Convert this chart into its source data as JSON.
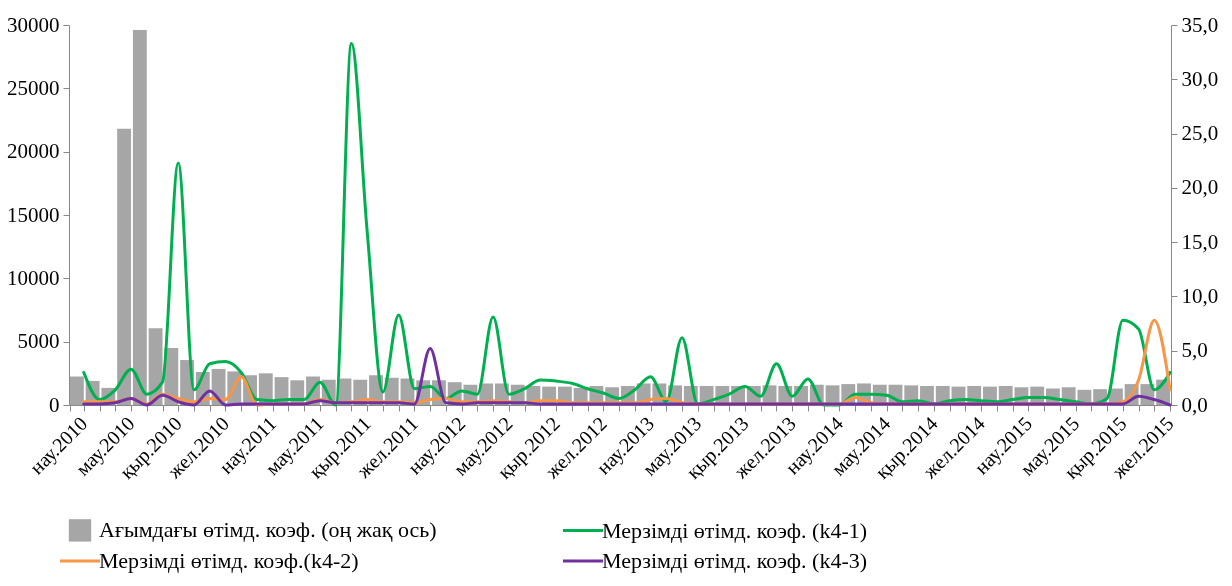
{
  "chart_data": {
    "type": "bar",
    "categories": [
      "нау.2010",
      null,
      null,
      "мау.2010",
      null,
      null,
      "қыр.2010",
      null,
      null,
      "жел.2010",
      null,
      null,
      "нау.2011",
      null,
      null,
      "мау.2011",
      null,
      null,
      "қыр.2011",
      null,
      null,
      "жел.2011",
      null,
      null,
      "нау.2012",
      null,
      null,
      "мау.2012",
      null,
      null,
      "қыр.2012",
      null,
      null,
      "жел.2012",
      null,
      null,
      "нау.2013",
      null,
      null,
      "мау.2013",
      null,
      null,
      "қыр.2013",
      null,
      null,
      "жел.2013",
      null,
      null,
      "нау.2014",
      null,
      null,
      "мау.2014",
      null,
      null,
      "қыр.2014",
      null,
      null,
      "жел.2014",
      null,
      null,
      "нау.2015",
      null,
      null,
      "мау.2015",
      null,
      null,
      "қыр.2015",
      null,
      null,
      "жел.2015"
    ],
    "series": [
      {
        "name": "Ағымдағы өтімд. коэф. (оң жақ ось)",
        "color": "#a6a6a6",
        "values": [
          2250,
          1900,
          1350,
          21800,
          29600,
          6050,
          4500,
          3550,
          2600,
          2850,
          2650,
          2350,
          2500,
          2200,
          1950,
          2250,
          2000,
          2100,
          2000,
          2350,
          2150,
          2100,
          1950,
          1950,
          1800,
          1600,
          1700,
          1700,
          1600,
          1500,
          1450,
          1450,
          1350,
          1500,
          1400,
          1500,
          1700,
          1700,
          1550,
          1500,
          1500,
          1500,
          1500,
          1500,
          1550,
          1500,
          1500,
          1600,
          1550,
          1650,
          1700,
          1600,
          1600,
          1550,
          1500,
          1500,
          1450,
          1500,
          1450,
          1500,
          1400,
          1450,
          1300,
          1400,
          1200,
          1250,
          1300,
          1650,
          1650,
          2000
        ]
      },
      {
        "name": "Мерзімді өтімд. коэф. (k4-1)",
        "type": "line",
        "axis": "y2",
        "color": "#00b050",
        "values": [
          3.0,
          0.5,
          1.4,
          3.3,
          1.0,
          2.1,
          22.3,
          1.4,
          3.8,
          4.0,
          3.0,
          0.5,
          0.4,
          0.5,
          0.5,
          2.1,
          0.0,
          33.3,
          16.0,
          1.2,
          8.3,
          1.5,
          1.7,
          0.6,
          1.3,
          1.0,
          8.1,
          1.0,
          1.5,
          2.3,
          2.2,
          2.0,
          1.5,
          1.1,
          0.6,
          1.4,
          2.6,
          0.3,
          6.2,
          0.1,
          0.5,
          1.0,
          1.7,
          0.8,
          3.8,
          0.8,
          2.4,
          0.0,
          0.0,
          1.0,
          1.0,
          0.9,
          0.3,
          0.4,
          0.1,
          0.4,
          0.5,
          0.4,
          0.3,
          0.5,
          0.7,
          0.7,
          0.5,
          0.3,
          0.1,
          0.6,
          7.8,
          7.0,
          1.4,
          3.0
        ]
      },
      {
        "name": "Мерзімді өтімд. коэф.(k4-2)",
        "type": "line",
        "axis": "y2",
        "color": "#f79646",
        "values": [
          0.3,
          0.3,
          0.3,
          0.6,
          0.1,
          1.0,
          0.6,
          0.3,
          0.6,
          0.5,
          2.6,
          0.0,
          0.1,
          0.1,
          0.1,
          0.5,
          0.2,
          0.3,
          0.5,
          0.3,
          0.3,
          0.2,
          0.5,
          0.6,
          0.3,
          0.3,
          0.4,
          0.3,
          0.2,
          0.4,
          0.4,
          0.2,
          0.2,
          0.2,
          0.2,
          0.2,
          0.5,
          0.6,
          0.2,
          0.1,
          0.1,
          0.1,
          0.1,
          0.1,
          0.1,
          0.1,
          0.1,
          0.1,
          0.1,
          0.7,
          0.2,
          0.1,
          0.1,
          0.1,
          0.1,
          0.1,
          0.1,
          0.1,
          0.1,
          0.1,
          0.1,
          0.1,
          0.1,
          0.1,
          0.1,
          0.1,
          0.3,
          2.3,
          7.8,
          1.4
        ]
      },
      {
        "name": "Мерзімді өтімд. коэф. (k4-3)",
        "type": "line",
        "axis": "y2",
        "color": "#7030a0",
        "values": [
          0.1,
          0.1,
          0.2,
          0.6,
          0.0,
          0.9,
          0.3,
          0.0,
          1.3,
          0.0,
          0.1,
          0.1,
          0.1,
          0.1,
          0.1,
          0.4,
          0.2,
          0.2,
          0.2,
          0.2,
          0.2,
          0.1,
          5.2,
          0.2,
          0.1,
          0.2,
          0.2,
          0.2,
          0.2,
          0.1,
          0.1,
          0.1,
          0.1,
          0.1,
          0.1,
          0.1,
          0.1,
          0.1,
          0.1,
          0.1,
          0.1,
          0.1,
          0.1,
          0.1,
          0.1,
          0.1,
          0.1,
          0.1,
          0.1,
          0.1,
          0.1,
          0.1,
          0.1,
          0.1,
          0.1,
          0.1,
          0.1,
          0.1,
          0.1,
          0.1,
          0.1,
          0.1,
          0.1,
          0.1,
          0.1,
          0.1,
          0.1,
          0.8,
          0.5,
          0.0
        ]
      }
    ],
    "ylim": [
      0,
      30000
    ],
    "yticks": [
      0,
      5000,
      10000,
      15000,
      20000,
      25000,
      30000
    ],
    "y2lim": [
      0,
      35
    ],
    "y2ticks": [
      {
        "value": 0,
        "label": "0,0"
      },
      {
        "value": 5,
        "label": "5,0"
      },
      {
        "value": 10,
        "label": "10,0"
      },
      {
        "value": 15,
        "label": "15,0"
      },
      {
        "value": 20,
        "label": "20,0"
      },
      {
        "value": 25,
        "label": "25,0"
      },
      {
        "value": 30,
        "label": "30,0"
      },
      {
        "value": 35,
        "label": "35,0"
      }
    ],
    "grid": false,
    "legend": "bottom"
  }
}
